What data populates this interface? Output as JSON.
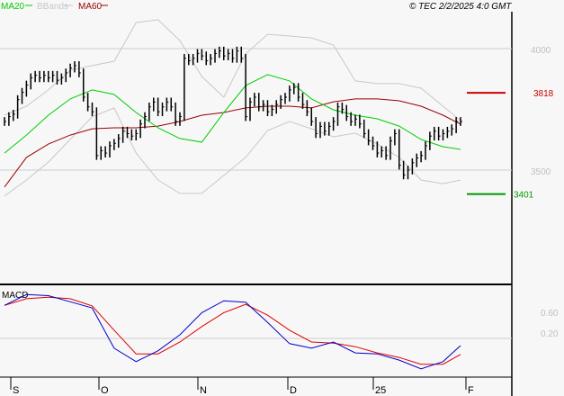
{
  "legend": {
    "ma20": "MA20",
    "bbands": "BBands",
    "ma60": "MA60"
  },
  "copyright": "© TEC 2/2/2025 4:0 GMT",
  "colors": {
    "ma20": "#00cc00",
    "bbands": "#c8c8c8",
    "ma60": "#990000",
    "resistance": "#cc0000",
    "support": "#009900",
    "macd": "#0000cc",
    "signal": "#dd0000"
  },
  "chart_data": [
    {
      "type": "ohlc",
      "title": "",
      "ylim": [
        3033,
        4126
      ],
      "yticks": [
        {
          "value": 4000,
          "label": "4000"
        },
        {
          "value": 3500,
          "label": "3500"
        }
      ],
      "xticks": [
        "S",
        "O",
        "N",
        "D",
        "25",
        "F"
      ],
      "closes": [
        3700,
        3720,
        3730,
        3790,
        3820,
        3850,
        3880,
        3890,
        3880,
        3890,
        3880,
        3890,
        3870,
        3880,
        3900,
        3920,
        3930,
        3900,
        3800,
        3760,
        3740,
        3560,
        3580,
        3570,
        3600,
        3610,
        3630,
        3660,
        3650,
        3640,
        3650,
        3690,
        3720,
        3760,
        3780,
        3740,
        3760,
        3780,
        3760,
        3700,
        3720,
        3960,
        3950,
        3960,
        3980,
        3970,
        3950,
        3960,
        3980,
        3990,
        3970,
        3980,
        3960,
        3990,
        3960,
        3720,
        3780,
        3800,
        3760,
        3770,
        3740,
        3750,
        3770,
        3790,
        3800,
        3830,
        3840,
        3800,
        3770,
        3740,
        3700,
        3650,
        3680,
        3660,
        3680,
        3700,
        3760,
        3750,
        3720,
        3700,
        3710,
        3690,
        3650,
        3620,
        3600,
        3570,
        3580,
        3560,
        3620,
        3650,
        3520,
        3480,
        3500,
        3530,
        3550,
        3560,
        3600,
        3640,
        3660,
        3640,
        3650,
        3660,
        3670,
        3700,
        3700
      ],
      "overlay_step": 5,
      "ma20": [
        3570,
        3644,
        3726,
        3793,
        3830,
        3811,
        3737,
        3674,
        3630,
        3615,
        3737,
        3848,
        3893,
        3867,
        3793,
        3748,
        3726,
        3711,
        3681,
        3626,
        3596,
        3585
      ],
      "ma60": [
        3430,
        3552,
        3607,
        3644,
        3670,
        3674,
        3674,
        3681,
        3700,
        3726,
        3737,
        3756,
        3763,
        3763,
        3756,
        3781,
        3793,
        3793,
        3785,
        3763,
        3726,
        3689
      ],
      "bb_upper": [
        3726,
        3763,
        3830,
        3911,
        3930,
        3948,
        4107,
        4119,
        4033,
        3885,
        3800,
        3978,
        4059,
        4052,
        4044,
        4015,
        3867,
        3856,
        3856,
        3837,
        3763,
        3704
      ],
      "bb_lower": [
        3393,
        3459,
        3533,
        3626,
        3719,
        3756,
        3570,
        3459,
        3404,
        3404,
        3478,
        3552,
        3663,
        3700,
        3670,
        3637,
        3652,
        3607,
        3552,
        3459,
        3444,
        3459
      ],
      "resistance": {
        "value": 3818,
        "label": "3818"
      },
      "support": {
        "value": 3401,
        "label": "3401"
      }
    },
    {
      "type": "line",
      "title": "MACD",
      "ylim": [
        -0.55,
        1.23
      ],
      "yticks": [
        {
          "value": 0.6,
          "label": "0.60"
        },
        {
          "value": 0.2,
          "label": "0.20"
        }
      ],
      "gridline": 0.2,
      "series": [
        {
          "name": "MACD",
          "values": [
            0.84,
            1.05,
            1.03,
            0.91,
            0.79,
            0.01,
            -0.25,
            -0.04,
            0.27,
            0.7,
            0.93,
            0.9,
            0.51,
            0.1,
            0.01,
            0.13,
            -0.08,
            -0.1,
            -0.22,
            -0.39,
            -0.25,
            0.06
          ]
        },
        {
          "name": "Signal",
          "values": [
            0.84,
            0.97,
            1.0,
            0.97,
            0.83,
            0.36,
            -0.1,
            -0.1,
            0.13,
            0.43,
            0.7,
            0.86,
            0.65,
            0.36,
            0.13,
            0.11,
            0.04,
            -0.08,
            -0.17,
            -0.3,
            -0.3,
            -0.11
          ]
        }
      ]
    }
  ]
}
